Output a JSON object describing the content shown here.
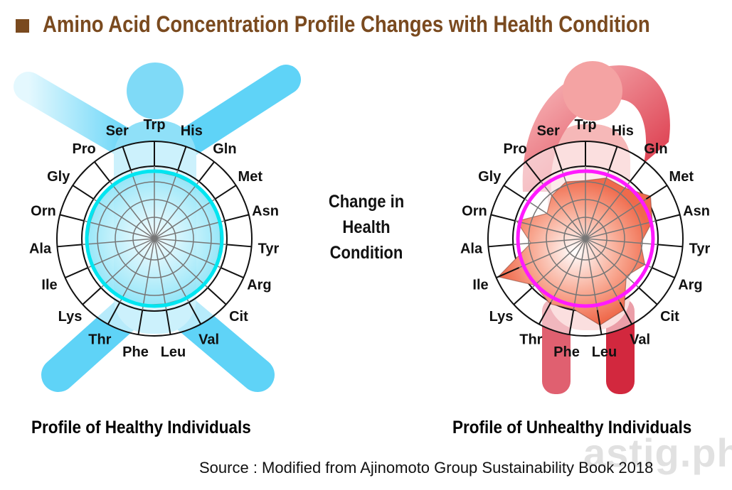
{
  "title": "Amino Acid Concentration Profile Changes with Health Condition",
  "center_text": [
    "Change in",
    "Health",
    "Condition"
  ],
  "left_caption": "Profile of Healthy Individuals",
  "right_caption": "Profile of Unhealthy Individuals",
  "source": "Source : Modified from Ajinomoto Group Sustainability Book 2018",
  "watermark": "astig.ph",
  "colors": {
    "title": "#7a4a1f",
    "healthy_ring": "#00e5f0",
    "unhealthy_ring": "#ff1aff",
    "healthy_figure": "#5fd3f7",
    "unhealthy_figure": "#f29a9a"
  },
  "chart_data": {
    "type": "radar",
    "axes": [
      "Trp",
      "His",
      "Gln",
      "Met",
      "Asn",
      "Tyr",
      "Arg",
      "Cit",
      "Val",
      "Leu",
      "Phe",
      "Thr",
      "Lys",
      "Ile",
      "Ala",
      "Orn",
      "Gly",
      "Pro",
      "Ser"
    ],
    "reference": 1.0,
    "series": [
      {
        "name": "Healthy Individuals",
        "values": [
          1.0,
          0.98,
          1.0,
          1.02,
          1.0,
          0.98,
          1.0,
          1.02,
          1.0,
          0.98,
          1.0,
          1.0,
          1.02,
          1.0,
          1.0,
          0.98,
          1.0,
          1.02,
          1.0
        ]
      },
      {
        "name": "Unhealthy Individuals",
        "values": [
          0.86,
          0.95,
          0.95,
          1.15,
          1.02,
          0.82,
          0.96,
          0.82,
          1.2,
          1.3,
          1.06,
          1.1,
          1.02,
          1.41,
          0.81,
          1.05,
          0.68,
          0.81,
          0.89
        ]
      }
    ]
  }
}
